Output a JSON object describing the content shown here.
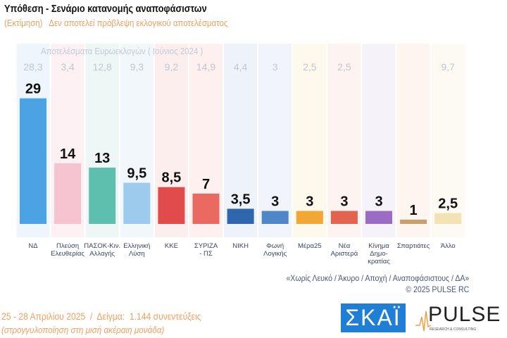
{
  "title": "Υπόθεση - Σενάριο κατανομής αναποφάσιστων",
  "subtitle": "(Εκτίμηση)   Δεν αποτελεί πρόβλεψη εκλογικού αποτελέσματος",
  "chart_data": {
    "type": "bar",
    "reference_label": "Αποτελέσματα Ευρωεκλογών  ( Ιούνιος 2024 )",
    "categories": [
      "ΝΔ",
      "Πλεύση Ελευθερίας",
      "ΠΑΣΟΚ-Κιν. Αλλαγής",
      "Ελληνική Λύση",
      "ΚΚΕ",
      "ΣΥΡΙΖΑ - ΠΣ",
      "ΝΙΚΗ",
      "Φωνή Λογικής",
      "Μέρα25",
      "Νέα Αριστερά",
      "Κίνημα Δημο-κρατίας",
      "Σπαρτιάτες",
      "Άλλο"
    ],
    "category_lines": [
      [
        "ΝΔ"
      ],
      [
        "Πλεύση",
        "Ελευθερίας"
      ],
      [
        "ΠΑΣΟΚ-Κιν.",
        "Αλλαγής"
      ],
      [
        "Ελληνική",
        "Λύση"
      ],
      [
        "ΚΚΕ"
      ],
      [
        "ΣΥΡΙΖΑ",
        "- ΠΣ"
      ],
      [
        "ΝΙΚΗ"
      ],
      [
        "Φωνή",
        "Λογικής"
      ],
      [
        "Μέρα25"
      ],
      [
        "Νέα",
        "Αριστερά"
      ],
      [
        "Κίνημα",
        "Δημο-",
        "κρατίας"
      ],
      [
        "Σπαρτιάτες"
      ],
      [
        "Άλλο"
      ]
    ],
    "values": [
      29,
      14,
      13,
      9.5,
      8.5,
      7,
      3.5,
      3,
      3,
      3,
      3,
      1,
      2.5
    ],
    "value_labels": [
      "29",
      "14",
      "13",
      "9,5",
      "8,5",
      "7",
      "3,5",
      "3",
      "3",
      "3",
      "3",
      "1",
      "2,5"
    ],
    "reference_values": [
      "28,3",
      "3,4",
      "12,8",
      "9,3",
      "9,2",
      "14,9",
      "4,4",
      "3",
      "2,5",
      "2,5",
      "",
      "",
      "9,7"
    ],
    "colors": [
      "#4ba3e3",
      "#f5c4d0",
      "#5fbfae",
      "#9ccbee",
      "#e14b4b",
      "#ea6a62",
      "#2f66ad",
      "#4e86c8",
      "#f2a634",
      "#e2644e",
      "#9b6cc6",
      "#c8a070",
      "#f3e2b3"
    ],
    "bg_tints": [
      "#eef5fc",
      "#fdf1f4",
      "#eef7f5",
      "#f2f7fc",
      "#fdeeee",
      "#fdf0ef",
      "#eef3f9",
      "#f1f5fb",
      "#fff8ec",
      "#fdf3f0",
      "#f5f2fa",
      "#fdf6f0",
      "#fcfaf3"
    ]
  },
  "notes": {
    "line1": "«Χωρίς Λευκό / Άκυρο / Αποχή / Αναποφάσιστους / ΔΑ»",
    "line2": "©  2025  PULSE RC"
  },
  "footer": {
    "line1": "25 - 28 Απριλίου 2025  /  Δείγμα:  1.144 συνεντεύξεις",
    "line2": "(στρογγυλοποίηση στη μισή ακέραιη μονάδα)"
  },
  "logos": {
    "skai": "ΣΚΑΪ",
    "pulse": "PULSE",
    "pulse_tag": "RESEARCH & CONSULTING"
  }
}
